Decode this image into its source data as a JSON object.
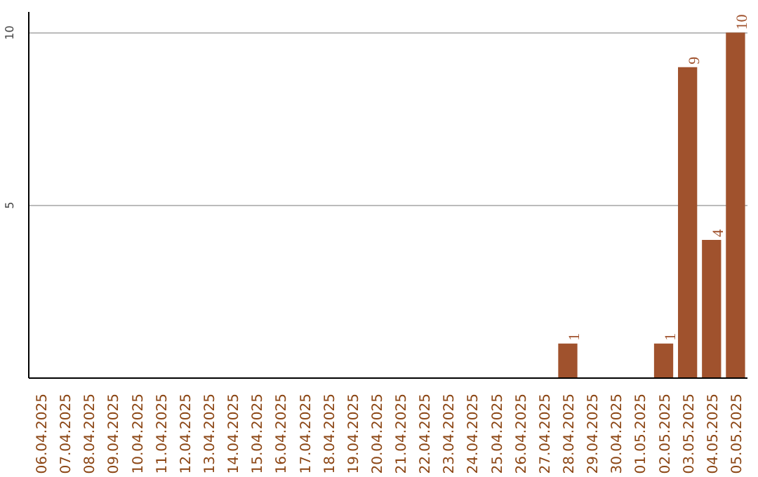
{
  "chart_data": {
    "type": "bar",
    "categories": [
      "06.04.2025",
      "07.04.2025",
      "08.04.2025",
      "09.04.2025",
      "10.04.2025",
      "11.04.2025",
      "12.04.2025",
      "13.04.2025",
      "14.04.2025",
      "15.04.2025",
      "16.04.2025",
      "17.04.2025",
      "18.04.2025",
      "19.04.2025",
      "20.04.2025",
      "21.04.2025",
      "22.04.2025",
      "23.04.2025",
      "24.04.2025",
      "25.04.2025",
      "26.04.2025",
      "27.04.2025",
      "28.04.2025",
      "29.04.2025",
      "30.04.2025",
      "01.05.2025",
      "02.05.2025",
      "03.05.2025",
      "04.05.2025",
      "05.05.2025"
    ],
    "values": [
      0,
      0,
      0,
      0,
      0,
      0,
      0,
      0,
      0,
      0,
      0,
      0,
      0,
      0,
      0,
      0,
      0,
      0,
      0,
      0,
      0,
      0,
      1,
      0,
      0,
      0,
      1,
      9,
      4,
      10
    ],
    "value_labels": [
      null,
      null,
      null,
      null,
      null,
      null,
      null,
      null,
      null,
      null,
      null,
      null,
      null,
      null,
      null,
      null,
      null,
      null,
      null,
      null,
      null,
      null,
      "1",
      null,
      null,
      null,
      "1",
      "9",
      "4",
      "10"
    ],
    "color": "#a0522d",
    "ylim": [
      0,
      10.6
    ],
    "yticks": [
      5,
      10
    ],
    "grid": "y"
  }
}
